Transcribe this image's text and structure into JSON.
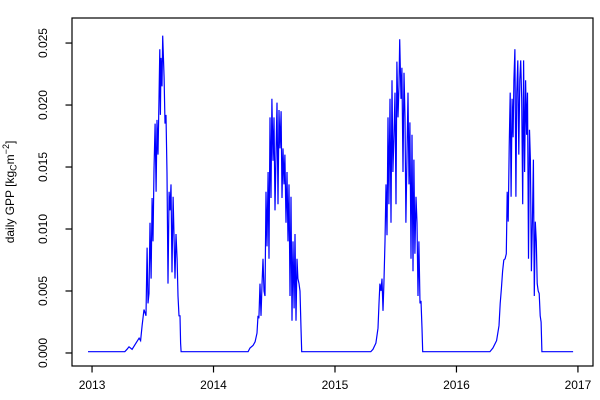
{
  "figure": {
    "background": "#FFFFFF",
    "box_color": "#000000",
    "tick_color": "#000000",
    "text_color": "#000000"
  },
  "chart_data": {
    "type": "line",
    "title": "",
    "xlabel": "",
    "ylabel": "daily GPP [kgC m^-2]",
    "ylabel_rich": {
      "prefix": "daily GPP [kg",
      "subscript": "C",
      "unit": "m",
      "superscript": "−2",
      "suffix": "]"
    },
    "grid": false,
    "legend": null,
    "xlim": [
      2012.835,
      2017.124
    ],
    "ylim": [
      -0.00105,
      0.02702
    ],
    "x_ticks": {
      "values": [
        2013,
        2014,
        2015,
        2016,
        2017
      ],
      "labels": [
        "2013",
        "2014",
        "2015",
        "2016",
        "2017"
      ]
    },
    "y_ticks": {
      "values": [
        0.0,
        0.005,
        0.01,
        0.015,
        0.02,
        0.025
      ],
      "labels": [
        "0.000",
        "0.005",
        "0.010",
        "0.015",
        "0.020",
        "0.025"
      ]
    },
    "series": [
      {
        "name": "daily GPP",
        "color": "#0000FF",
        "points": [
          [
            2012.967,
            0.0001
          ],
          [
            2013.1,
            0.0001
          ],
          [
            2013.27,
            0.0001
          ],
          [
            2013.288,
            0.0003
          ],
          [
            2013.304,
            0.0005
          ],
          [
            2013.33,
            0.0003
          ],
          [
            2013.362,
            0.0008
          ],
          [
            2013.387,
            0.0012
          ],
          [
            2013.4,
            0.001
          ],
          [
            2013.412,
            0.0022
          ],
          [
            2013.428,
            0.0035
          ],
          [
            2013.444,
            0.003
          ],
          [
            2013.453,
            0.0085
          ],
          [
            2013.461,
            0.004
          ],
          [
            2013.469,
            0.0048
          ],
          [
            2013.477,
            0.0105
          ],
          [
            2013.486,
            0.006
          ],
          [
            2013.494,
            0.0125
          ],
          [
            2013.502,
            0.009
          ],
          [
            2013.51,
            0.0148
          ],
          [
            2013.519,
            0.0185
          ],
          [
            2013.527,
            0.013
          ],
          [
            2013.535,
            0.0188
          ],
          [
            2013.543,
            0.016
          ],
          [
            2013.551,
            0.0205
          ],
          [
            2013.558,
            0.0245
          ],
          [
            2013.563,
            0.0192
          ],
          [
            2013.568,
            0.0238
          ],
          [
            2013.576,
            0.0215
          ],
          [
            2013.582,
            0.0256
          ],
          [
            2013.593,
            0.0222
          ],
          [
            2013.601,
            0.0185
          ],
          [
            2013.609,
            0.0192
          ],
          [
            2013.617,
            0.0145
          ],
          [
            2013.625,
            0.0056
          ],
          [
            2013.634,
            0.013
          ],
          [
            2013.642,
            0.0115
          ],
          [
            2013.65,
            0.0136
          ],
          [
            2013.658,
            0.0065
          ],
          [
            2013.667,
            0.0126
          ],
          [
            2013.675,
            0.0095
          ],
          [
            2013.683,
            0.006
          ],
          [
            2013.691,
            0.0096
          ],
          [
            2013.7,
            0.0076
          ],
          [
            2013.708,
            0.0046
          ],
          [
            2013.716,
            0.003
          ],
          [
            2013.724,
            0.003
          ],
          [
            2013.729,
            0.0008
          ],
          [
            2013.733,
            0.0001
          ],
          [
            2013.9,
            0.0001
          ],
          [
            2014.15,
            0.0001
          ],
          [
            2014.285,
            0.0001
          ],
          [
            2014.3,
            0.0004
          ],
          [
            2014.325,
            0.0006
          ],
          [
            2014.342,
            0.0009
          ],
          [
            2014.358,
            0.0016
          ],
          [
            2014.366,
            0.003
          ],
          [
            2014.374,
            0.0028
          ],
          [
            2014.383,
            0.0056
          ],
          [
            2014.391,
            0.003
          ],
          [
            2014.399,
            0.0055
          ],
          [
            2014.407,
            0.0076
          ],
          [
            2014.416,
            0.005
          ],
          [
            2014.424,
            0.0046
          ],
          [
            2014.432,
            0.013
          ],
          [
            2014.44,
            0.0086
          ],
          [
            2014.449,
            0.0146
          ],
          [
            2014.457,
            0.0076
          ],
          [
            2014.465,
            0.019
          ],
          [
            2014.473,
            0.0125
          ],
          [
            2014.481,
            0.0205
          ],
          [
            2014.49,
            0.0155
          ],
          [
            2014.498,
            0.019
          ],
          [
            2014.506,
            0.0115
          ],
          [
            2014.514,
            0.016
          ],
          [
            2014.523,
            0.0202
          ],
          [
            2014.531,
            0.012
          ],
          [
            2014.539,
            0.0196
          ],
          [
            2014.547,
            0.0165
          ],
          [
            2014.556,
            0.0195
          ],
          [
            2014.564,
            0.0125
          ],
          [
            2014.572,
            0.0165
          ],
          [
            2014.58,
            0.0136
          ],
          [
            2014.588,
            0.016
          ],
          [
            2014.597,
            0.0105
          ],
          [
            2014.605,
            0.0146
          ],
          [
            2014.613,
            0.009
          ],
          [
            2014.621,
            0.0136
          ],
          [
            2014.63,
            0.0046
          ],
          [
            2014.638,
            0.0126
          ],
          [
            2014.646,
            0.0026
          ],
          [
            2014.654,
            0.009
          ],
          [
            2014.663,
            0.0036
          ],
          [
            2014.671,
            0.0096
          ],
          [
            2014.679,
            0.0026
          ],
          [
            2014.687,
            0.0076
          ],
          [
            2014.695,
            0.006
          ],
          [
            2014.704,
            0.0056
          ],
          [
            2014.712,
            0.005
          ],
          [
            2014.72,
            0.002
          ],
          [
            2014.726,
            0.0001
          ],
          [
            2014.9,
            0.0001
          ],
          [
            2015.15,
            0.0001
          ],
          [
            2015.295,
            0.0001
          ],
          [
            2015.313,
            0.0003
          ],
          [
            2015.337,
            0.0008
          ],
          [
            2015.354,
            0.002
          ],
          [
            2015.362,
            0.004
          ],
          [
            2015.37,
            0.0056
          ],
          [
            2015.379,
            0.005
          ],
          [
            2015.387,
            0.006
          ],
          [
            2015.395,
            0.0034
          ],
          [
            2015.403,
            0.0056
          ],
          [
            2015.412,
            0.009
          ],
          [
            2015.42,
            0.0136
          ],
          [
            2015.428,
            0.0095
          ],
          [
            2015.436,
            0.019
          ],
          [
            2015.444,
            0.012
          ],
          [
            2015.453,
            0.0205
          ],
          [
            2015.461,
            0.0105
          ],
          [
            2015.469,
            0.022
          ],
          [
            2015.477,
            0.0146
          ],
          [
            2015.486,
            0.0176
          ],
          [
            2015.494,
            0.021
          ],
          [
            2015.502,
            0.012
          ],
          [
            2015.51,
            0.0235
          ],
          [
            2015.519,
            0.019
          ],
          [
            2015.527,
            0.0216
          ],
          [
            2015.533,
            0.0253
          ],
          [
            2015.543,
            0.0205
          ],
          [
            2015.551,
            0.023
          ],
          [
            2015.56,
            0.0146
          ],
          [
            2015.568,
            0.0226
          ],
          [
            2015.576,
            0.019
          ],
          [
            2015.584,
            0.0105
          ],
          [
            2015.593,
            0.016
          ],
          [
            2015.601,
            0.021
          ],
          [
            2015.609,
            0.0136
          ],
          [
            2015.617,
            0.0186
          ],
          [
            2015.626,
            0.0076
          ],
          [
            2015.634,
            0.0176
          ],
          [
            2015.642,
            0.0066
          ],
          [
            2015.65,
            0.0156
          ],
          [
            2015.658,
            0.008
          ],
          [
            2015.667,
            0.0126
          ],
          [
            2015.675,
            0.0105
          ],
          [
            2015.683,
            0.0046
          ],
          [
            2015.691,
            0.009
          ],
          [
            2015.7,
            0.004
          ],
          [
            2015.708,
            0.0042
          ],
          [
            2015.716,
            0.002
          ],
          [
            2015.722,
            0.0001
          ],
          [
            2015.9,
            0.0001
          ],
          [
            2016.15,
            0.0001
          ],
          [
            2016.275,
            0.0001
          ],
          [
            2016.3,
            0.0004
          ],
          [
            2016.33,
            0.001
          ],
          [
            2016.35,
            0.0022
          ],
          [
            2016.36,
            0.004
          ],
          [
            2016.37,
            0.0052
          ],
          [
            2016.38,
            0.0066
          ],
          [
            2016.39,
            0.0075
          ],
          [
            2016.4,
            0.0076
          ],
          [
            2016.41,
            0.008
          ],
          [
            2016.418,
            0.013
          ],
          [
            2016.426,
            0.0106
          ],
          [
            2016.434,
            0.0166
          ],
          [
            2016.442,
            0.021
          ],
          [
            2016.45,
            0.0126
          ],
          [
            2016.458,
            0.0205
          ],
          [
            2016.466,
            0.0174
          ],
          [
            2016.473,
            0.022
          ],
          [
            2016.481,
            0.0245
          ],
          [
            2016.489,
            0.0126
          ],
          [
            2016.497,
            0.021
          ],
          [
            2016.505,
            0.0236
          ],
          [
            2016.513,
            0.016
          ],
          [
            2016.521,
            0.022
          ],
          [
            2016.529,
            0.0236
          ],
          [
            2016.537,
            0.0205
          ],
          [
            2016.545,
            0.012
          ],
          [
            2016.553,
            0.0236
          ],
          [
            2016.561,
            0.0146
          ],
          [
            2016.569,
            0.022
          ],
          [
            2016.577,
            0.0176
          ],
          [
            2016.585,
            0.021
          ],
          [
            2016.593,
            0.0076
          ],
          [
            2016.601,
            0.018
          ],
          [
            2016.609,
            0.0156
          ],
          [
            2016.617,
            0.0066
          ],
          [
            2016.625,
            0.0106
          ],
          [
            2016.633,
            0.0156
          ],
          [
            2016.641,
            0.0046
          ],
          [
            2016.649,
            0.0106
          ],
          [
            2016.657,
            0.009
          ],
          [
            2016.665,
            0.0056
          ],
          [
            2016.673,
            0.005
          ],
          [
            2016.681,
            0.0048
          ],
          [
            2016.689,
            0.003
          ],
          [
            2016.697,
            0.0025
          ],
          [
            2016.703,
            0.0001
          ],
          [
            2016.8,
            0.0001
          ],
          [
            2016.96,
            0.0001
          ]
        ]
      }
    ]
  }
}
